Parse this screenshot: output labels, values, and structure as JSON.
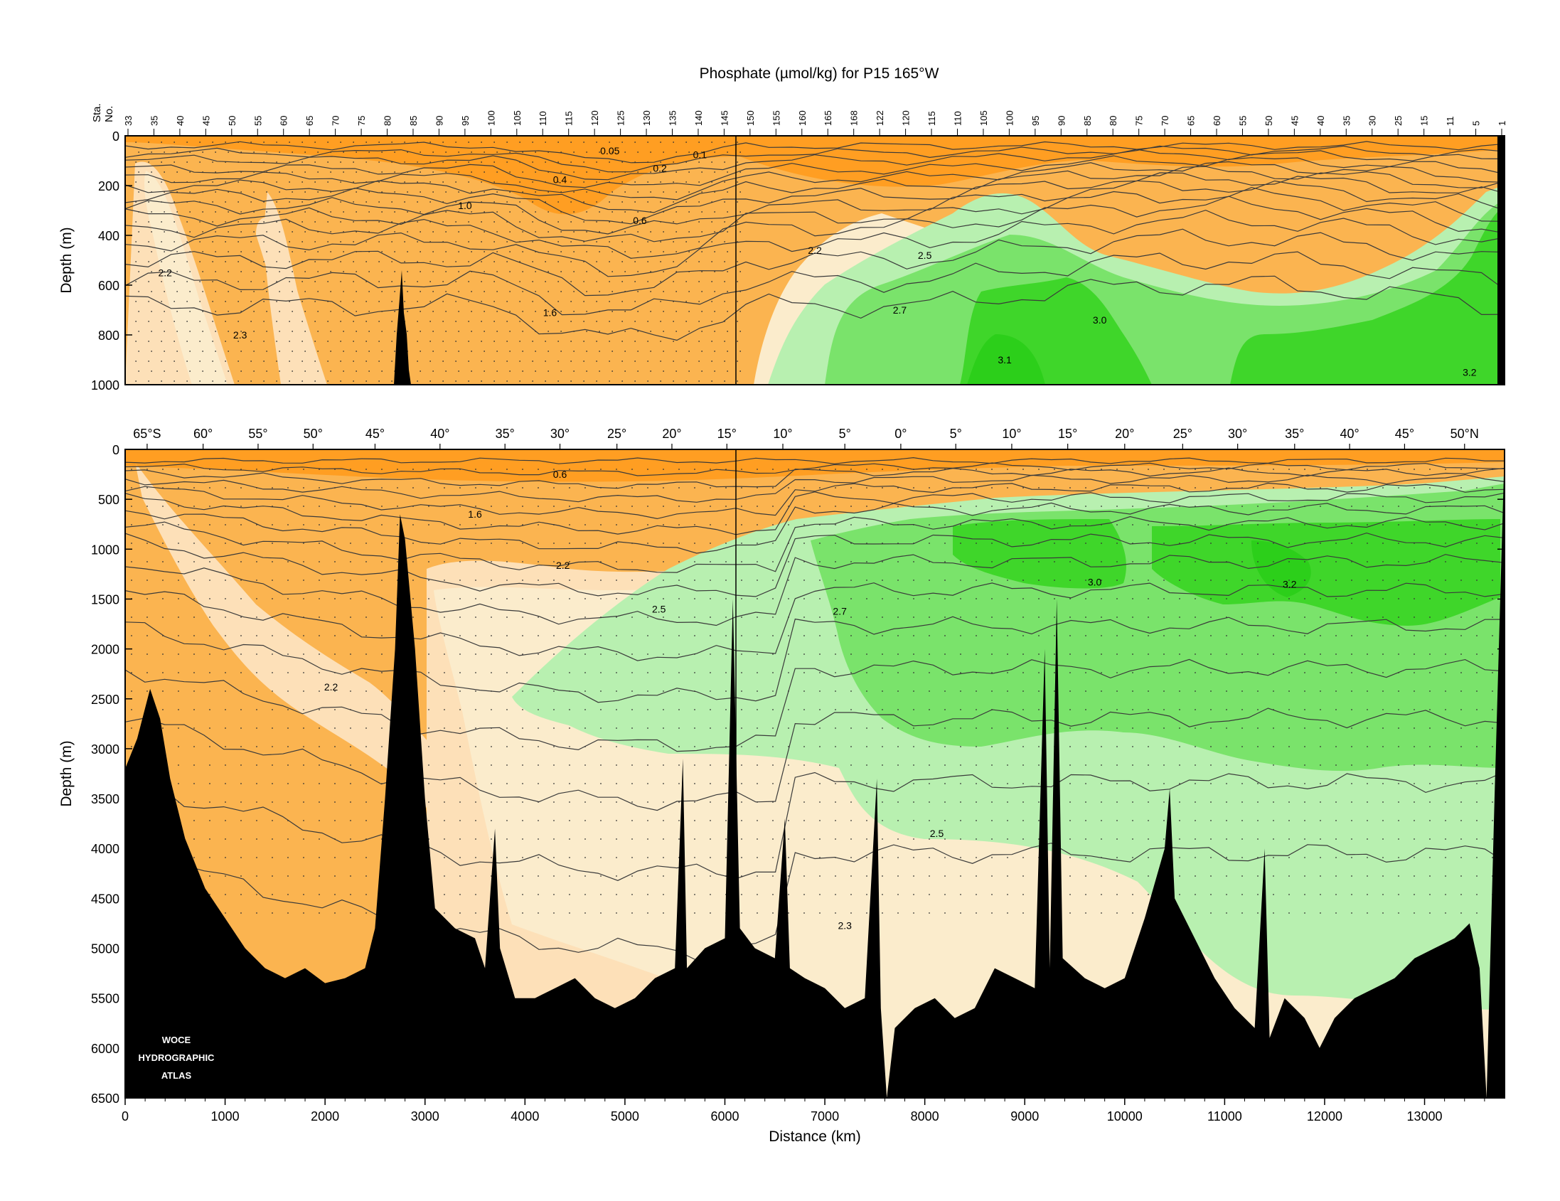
{
  "title": "Phosphate (µmol/kg) for P15 165°W",
  "watermark": [
    "WOCE",
    "HYDROGRAPHIC",
    "ATLAS"
  ],
  "colors": {
    "lt22": "#fbb450",
    "c22_23": "#fde0b8",
    "c23_25": "#fbeccc",
    "c25_27": "#b8f0b0",
    "c27_30": "#7ae36b",
    "c30_31": "#3fd62a",
    "c31_32": "#2ccf1a",
    "surface": "#ff9a1a",
    "bathymetry": "#000000"
  },
  "chart_data": [
    {
      "type": "contour-section",
      "panel": "upper",
      "ylabel": "Depth (m)",
      "ylim": [
        1000,
        0
      ],
      "xlim": [
        0,
        13800
      ],
      "yticks": [
        0,
        200,
        400,
        600,
        800,
        1000
      ],
      "station_label": [
        "Sta.",
        "No."
      ],
      "stations": [
        "33",
        "35",
        "40",
        "45",
        "50",
        "55",
        "60",
        "65",
        "70",
        "75",
        "80",
        "85",
        "90",
        "95",
        "100",
        "105",
        "110",
        "115",
        "120",
        "125",
        "130",
        "135",
        "140",
        "145",
        "150",
        "155",
        "160",
        "165",
        "168",
        "122",
        "120",
        "115",
        "110",
        "105",
        "100",
        "95",
        "90",
        "85",
        "80",
        "75",
        "70",
        "65",
        "60",
        "55",
        "50",
        "45",
        "40",
        "35",
        "30",
        "25",
        "15",
        "11",
        "5",
        "1"
      ],
      "contour_labels": [
        {
          "text": "0.05",
          "x": 4850,
          "y": 60
        },
        {
          "text": "0.1",
          "x": 5750,
          "y": 75
        },
        {
          "text": "0.2",
          "x": 5350,
          "y": 130
        },
        {
          "text": "0.4",
          "x": 4350,
          "y": 175
        },
        {
          "text": "1.0",
          "x": 3400,
          "y": 280
        },
        {
          "text": "0.6",
          "x": 5150,
          "y": 340
        },
        {
          "text": "2.2",
          "x": 400,
          "y": 550
        },
        {
          "text": "1.6",
          "x": 4250,
          "y": 710
        },
        {
          "text": "2.3",
          "x": 1150,
          "y": 800
        },
        {
          "text": "2.2",
          "x": 6900,
          "y": 460
        },
        {
          "text": "2.5",
          "x": 8000,
          "y": 480
        },
        {
          "text": "2.7",
          "x": 7750,
          "y": 700
        },
        {
          "text": "3.0",
          "x": 9750,
          "y": 740
        },
        {
          "text": "3.1",
          "x": 8800,
          "y": 900
        },
        {
          "text": "3.2",
          "x": 13450,
          "y": 950
        }
      ]
    },
    {
      "type": "contour-section",
      "panel": "lower",
      "xlabel": "Distance (km)",
      "ylabel": "Depth (m)",
      "xlim": [
        0,
        13800
      ],
      "ylim": [
        6500,
        0
      ],
      "xticks": [
        0,
        1000,
        2000,
        3000,
        4000,
        5000,
        6000,
        7000,
        8000,
        9000,
        10000,
        11000,
        12000,
        13000
      ],
      "yticks": [
        0,
        500,
        1000,
        1500,
        2000,
        2500,
        3000,
        3500,
        4000,
        4500,
        5000,
        5500,
        6000,
        6500
      ],
      "latitude_labels": [
        {
          "text": "65°S",
          "x": 220
        },
        {
          "text": "60°",
          "x": 780
        },
        {
          "text": "55°",
          "x": 1330
        },
        {
          "text": "50°",
          "x": 1880
        },
        {
          "text": "45°",
          "x": 2500
        },
        {
          "text": "40°",
          "x": 3150
        },
        {
          "text": "35°",
          "x": 3800
        },
        {
          "text": "30°",
          "x": 4350
        },
        {
          "text": "25°",
          "x": 4920
        },
        {
          "text": "20°",
          "x": 5470
        },
        {
          "text": "15°",
          "x": 6020
        },
        {
          "text": "10°",
          "x": 6580
        },
        {
          "text": "5°",
          "x": 7200
        },
        {
          "text": "0°",
          "x": 7760
        },
        {
          "text": "5°",
          "x": 8310
        },
        {
          "text": "10°",
          "x": 8870
        },
        {
          "text": "15°",
          "x": 9430
        },
        {
          "text": "20°",
          "x": 10000
        },
        {
          "text": "25°",
          "x": 10580
        },
        {
          "text": "30°",
          "x": 11130
        },
        {
          "text": "35°",
          "x": 11700
        },
        {
          "text": "40°",
          "x": 12250
        },
        {
          "text": "45°",
          "x": 12800
        },
        {
          "text": "50°N",
          "x": 13400
        }
      ],
      "contour_labels": [
        {
          "text": "0.6",
          "x": 4350,
          "y": 250
        },
        {
          "text": "1.6",
          "x": 3500,
          "y": 650
        },
        {
          "text": "2.2",
          "x": 4380,
          "y": 1160
        },
        {
          "text": "2.5",
          "x": 5340,
          "y": 1600
        },
        {
          "text": "2.7",
          "x": 7150,
          "y": 1620
        },
        {
          "text": "3.0",
          "x": 9700,
          "y": 1330
        },
        {
          "text": "3.2",
          "x": 11650,
          "y": 1350
        },
        {
          "text": "2.2",
          "x": 2060,
          "y": 2380
        },
        {
          "text": "2.5",
          "x": 8120,
          "y": 3850
        },
        {
          "text": "2.3",
          "x": 7200,
          "y": 4770
        }
      ]
    }
  ]
}
